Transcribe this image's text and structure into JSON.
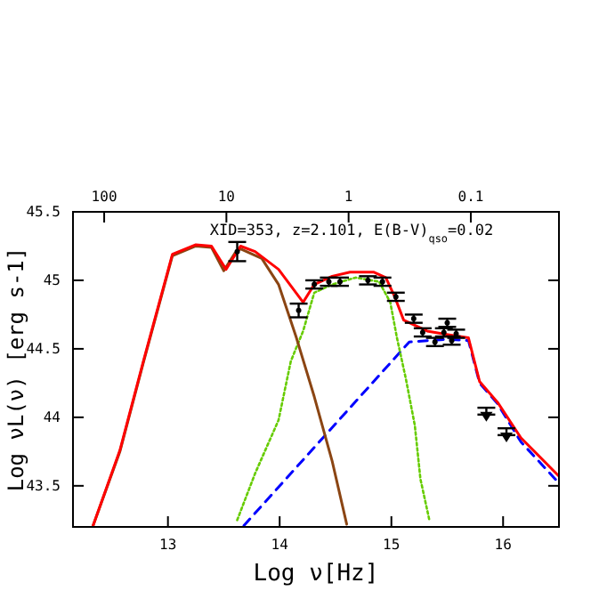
{
  "chart_data": {
    "type": "line",
    "xlabel": "Log ν[Hz]",
    "ylabel": "Log νL(ν)  [erg s-1]",
    "annotations": [
      "XID=353, z=2.101, E(B-V)$_{qso}$=0.02"
    ],
    "xlim": [
      12.15,
      16.5
    ],
    "xticks": [
      13,
      14,
      15,
      16
    ],
    "ylim": [
      43.2,
      45.5
    ],
    "yticks": [
      43.5,
      44,
      44.5,
      45,
      45.5
    ],
    "x2lim": [
      180,
      0.019
    ],
    "x2ticks": [
      100,
      10,
      1,
      0.1
    ],
    "log": "x2",
    "grid": false,
    "series": [
      {
        "color": "#0000ff",
        "line_style": "dashed",
        "x": [
          13.68,
          15.16,
          15.5,
          15.69,
          15.79,
          15.95,
          16.16,
          16.5
        ],
        "values": [
          43.21,
          44.55,
          44.57,
          44.56,
          44.25,
          44.1,
          43.82,
          43.52
        ]
      },
      {
        "color": "#66cc00",
        "line_style": "dotted",
        "x": [
          13.62,
          13.78,
          13.99,
          14.1,
          14.21,
          14.31,
          14.47,
          14.68,
          14.89,
          14.99,
          15.05,
          15.13,
          15.21,
          15.26,
          15.34
        ],
        "values": [
          43.25,
          43.59,
          43.98,
          44.41,
          44.63,
          44.91,
          44.97,
          45.02,
          44.99,
          44.84,
          44.58,
          44.28,
          43.94,
          43.55,
          43.25
        ]
      },
      {
        "color": "#8b4513",
        "line_style": "solid",
        "x": [
          12.33,
          12.57,
          12.78,
          13.04,
          13.25,
          13.39,
          13.5,
          13.6,
          13.65,
          13.84,
          13.99,
          14.15,
          14.31,
          14.47,
          14.6
        ],
        "values": [
          43.21,
          43.75,
          44.4,
          45.18,
          45.25,
          45.24,
          45.07,
          45.2,
          45.23,
          45.16,
          44.97,
          44.58,
          44.15,
          43.68,
          43.22
        ]
      },
      {
        "color": "#ff0000",
        "line_style": "solid",
        "x": [
          12.33,
          12.57,
          12.78,
          13.04,
          13.25,
          13.39,
          13.52,
          13.65,
          13.78,
          13.99,
          14.21,
          14.31,
          14.47,
          14.63,
          14.84,
          14.95,
          15.03,
          15.11,
          15.32,
          15.53,
          15.69,
          15.79,
          15.95,
          16.16,
          16.5
        ],
        "values": [
          43.21,
          43.76,
          44.41,
          45.19,
          45.26,
          45.25,
          45.08,
          45.25,
          45.21,
          45.08,
          44.84,
          44.97,
          45.03,
          45.06,
          45.06,
          45.02,
          44.88,
          44.71,
          44.63,
          44.6,
          44.58,
          44.26,
          44.11,
          43.85,
          43.57
        ]
      },
      {
        "type": "scatter",
        "color": "#000000",
        "marker": "circle",
        "x": [
          13.62,
          14.17,
          14.31,
          14.44,
          14.54,
          14.79,
          14.92,
          15.04,
          15.2,
          15.28,
          15.39,
          15.47,
          15.5,
          15.54,
          15.58
        ],
        "values": [
          45.21,
          44.78,
          44.97,
          44.99,
          44.99,
          45.0,
          44.99,
          44.88,
          44.72,
          44.62,
          44.55,
          44.62,
          44.69,
          44.56,
          44.61
        ],
        "errors": [
          0.07,
          0.05,
          0.03,
          0.03,
          0.03,
          0.03,
          0.03,
          0.03,
          0.03,
          0.03,
          0.03,
          0.03,
          0.03,
          0.03,
          0.03
        ]
      },
      {
        "type": "scatter",
        "color": "#000000",
        "marker": "triangle",
        "x": [
          15.85,
          16.03
        ],
        "values": [
          44.02,
          43.87
        ],
        "errors": [
          [
            44.02,
            44.07
          ],
          [
            43.87,
            43.92
          ]
        ]
      }
    ]
  }
}
